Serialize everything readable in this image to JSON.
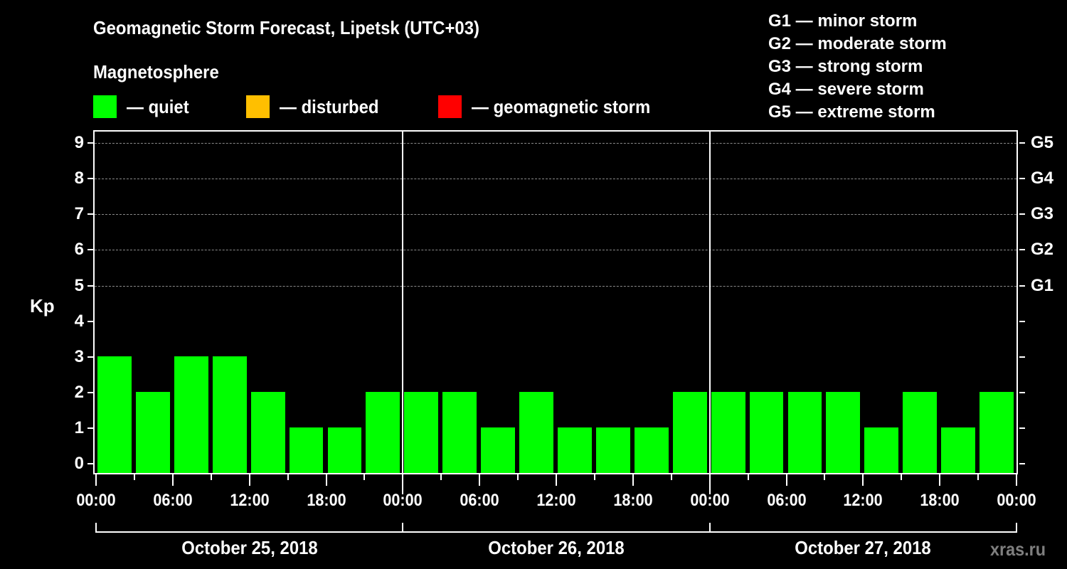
{
  "header": {
    "title": "Geomagnetic Storm Forecast, Lipetsk (UTC+03)",
    "subtitle": "Magnetosphere"
  },
  "legend": [
    {
      "label": "— quiet",
      "color": "#00ff00"
    },
    {
      "label": "— disturbed",
      "color": "#ffbf00"
    },
    {
      "label": "— geomagnetic storm",
      "color": "#ff0000"
    }
  ],
  "storm_scale": [
    "G1 — minor storm",
    "G2 — moderate storm",
    "G3 — strong storm",
    "G4 — severe storm",
    "G5 — extreme storm"
  ],
  "watermark": "xras.ru",
  "chart_data": {
    "type": "bar",
    "title": "Geomagnetic Storm Forecast, Lipetsk (UTC+03)",
    "subtitle": "Magnetosphere",
    "ylabel": "Kp",
    "xlabel": "",
    "ylim": [
      0,
      9
    ],
    "yticks": [
      "0",
      "1",
      "2",
      "3",
      "4",
      "5",
      "6",
      "7",
      "8",
      "9"
    ],
    "y2_labels": {
      "5": "G1",
      "6": "G2",
      "7": "G3",
      "8": "G4",
      "9": "G5"
    },
    "grid": {
      "y_dashed_at": [
        5,
        6,
        7,
        8,
        9
      ]
    },
    "xtick_labels": [
      "00:00",
      "06:00",
      "12:00",
      "18:00",
      "00:00",
      "06:00",
      "12:00",
      "18:00",
      "00:00",
      "06:00",
      "12:00",
      "18:00",
      "00:00"
    ],
    "dates": [
      "October 25, 2018",
      "October 26, 2018",
      "October 27, 2018"
    ],
    "categories": [
      "Oct 25 00-03",
      "Oct 25 03-06",
      "Oct 25 06-09",
      "Oct 25 09-12",
      "Oct 25 12-15",
      "Oct 25 15-18",
      "Oct 25 18-21",
      "Oct 25 21-24",
      "Oct 26 00-03",
      "Oct 26 03-06",
      "Oct 26 06-09",
      "Oct 26 09-12",
      "Oct 26 12-15",
      "Oct 26 15-18",
      "Oct 26 18-21",
      "Oct 26 21-24",
      "Oct 27 00-03",
      "Oct 27 03-06",
      "Oct 27 06-09",
      "Oct 27 09-12",
      "Oct 27 12-15",
      "Oct 27 15-18",
      "Oct 27 18-21",
      "Oct 27 21-24"
    ],
    "values": [
      3,
      2,
      3,
      3,
      2,
      1,
      1,
      2,
      2,
      2,
      1,
      2,
      1,
      1,
      1,
      2,
      2,
      2,
      2,
      2,
      1,
      2,
      1,
      2
    ],
    "bar_status": "quiet",
    "bar_color": "#00ff00",
    "legend_position": "top"
  }
}
